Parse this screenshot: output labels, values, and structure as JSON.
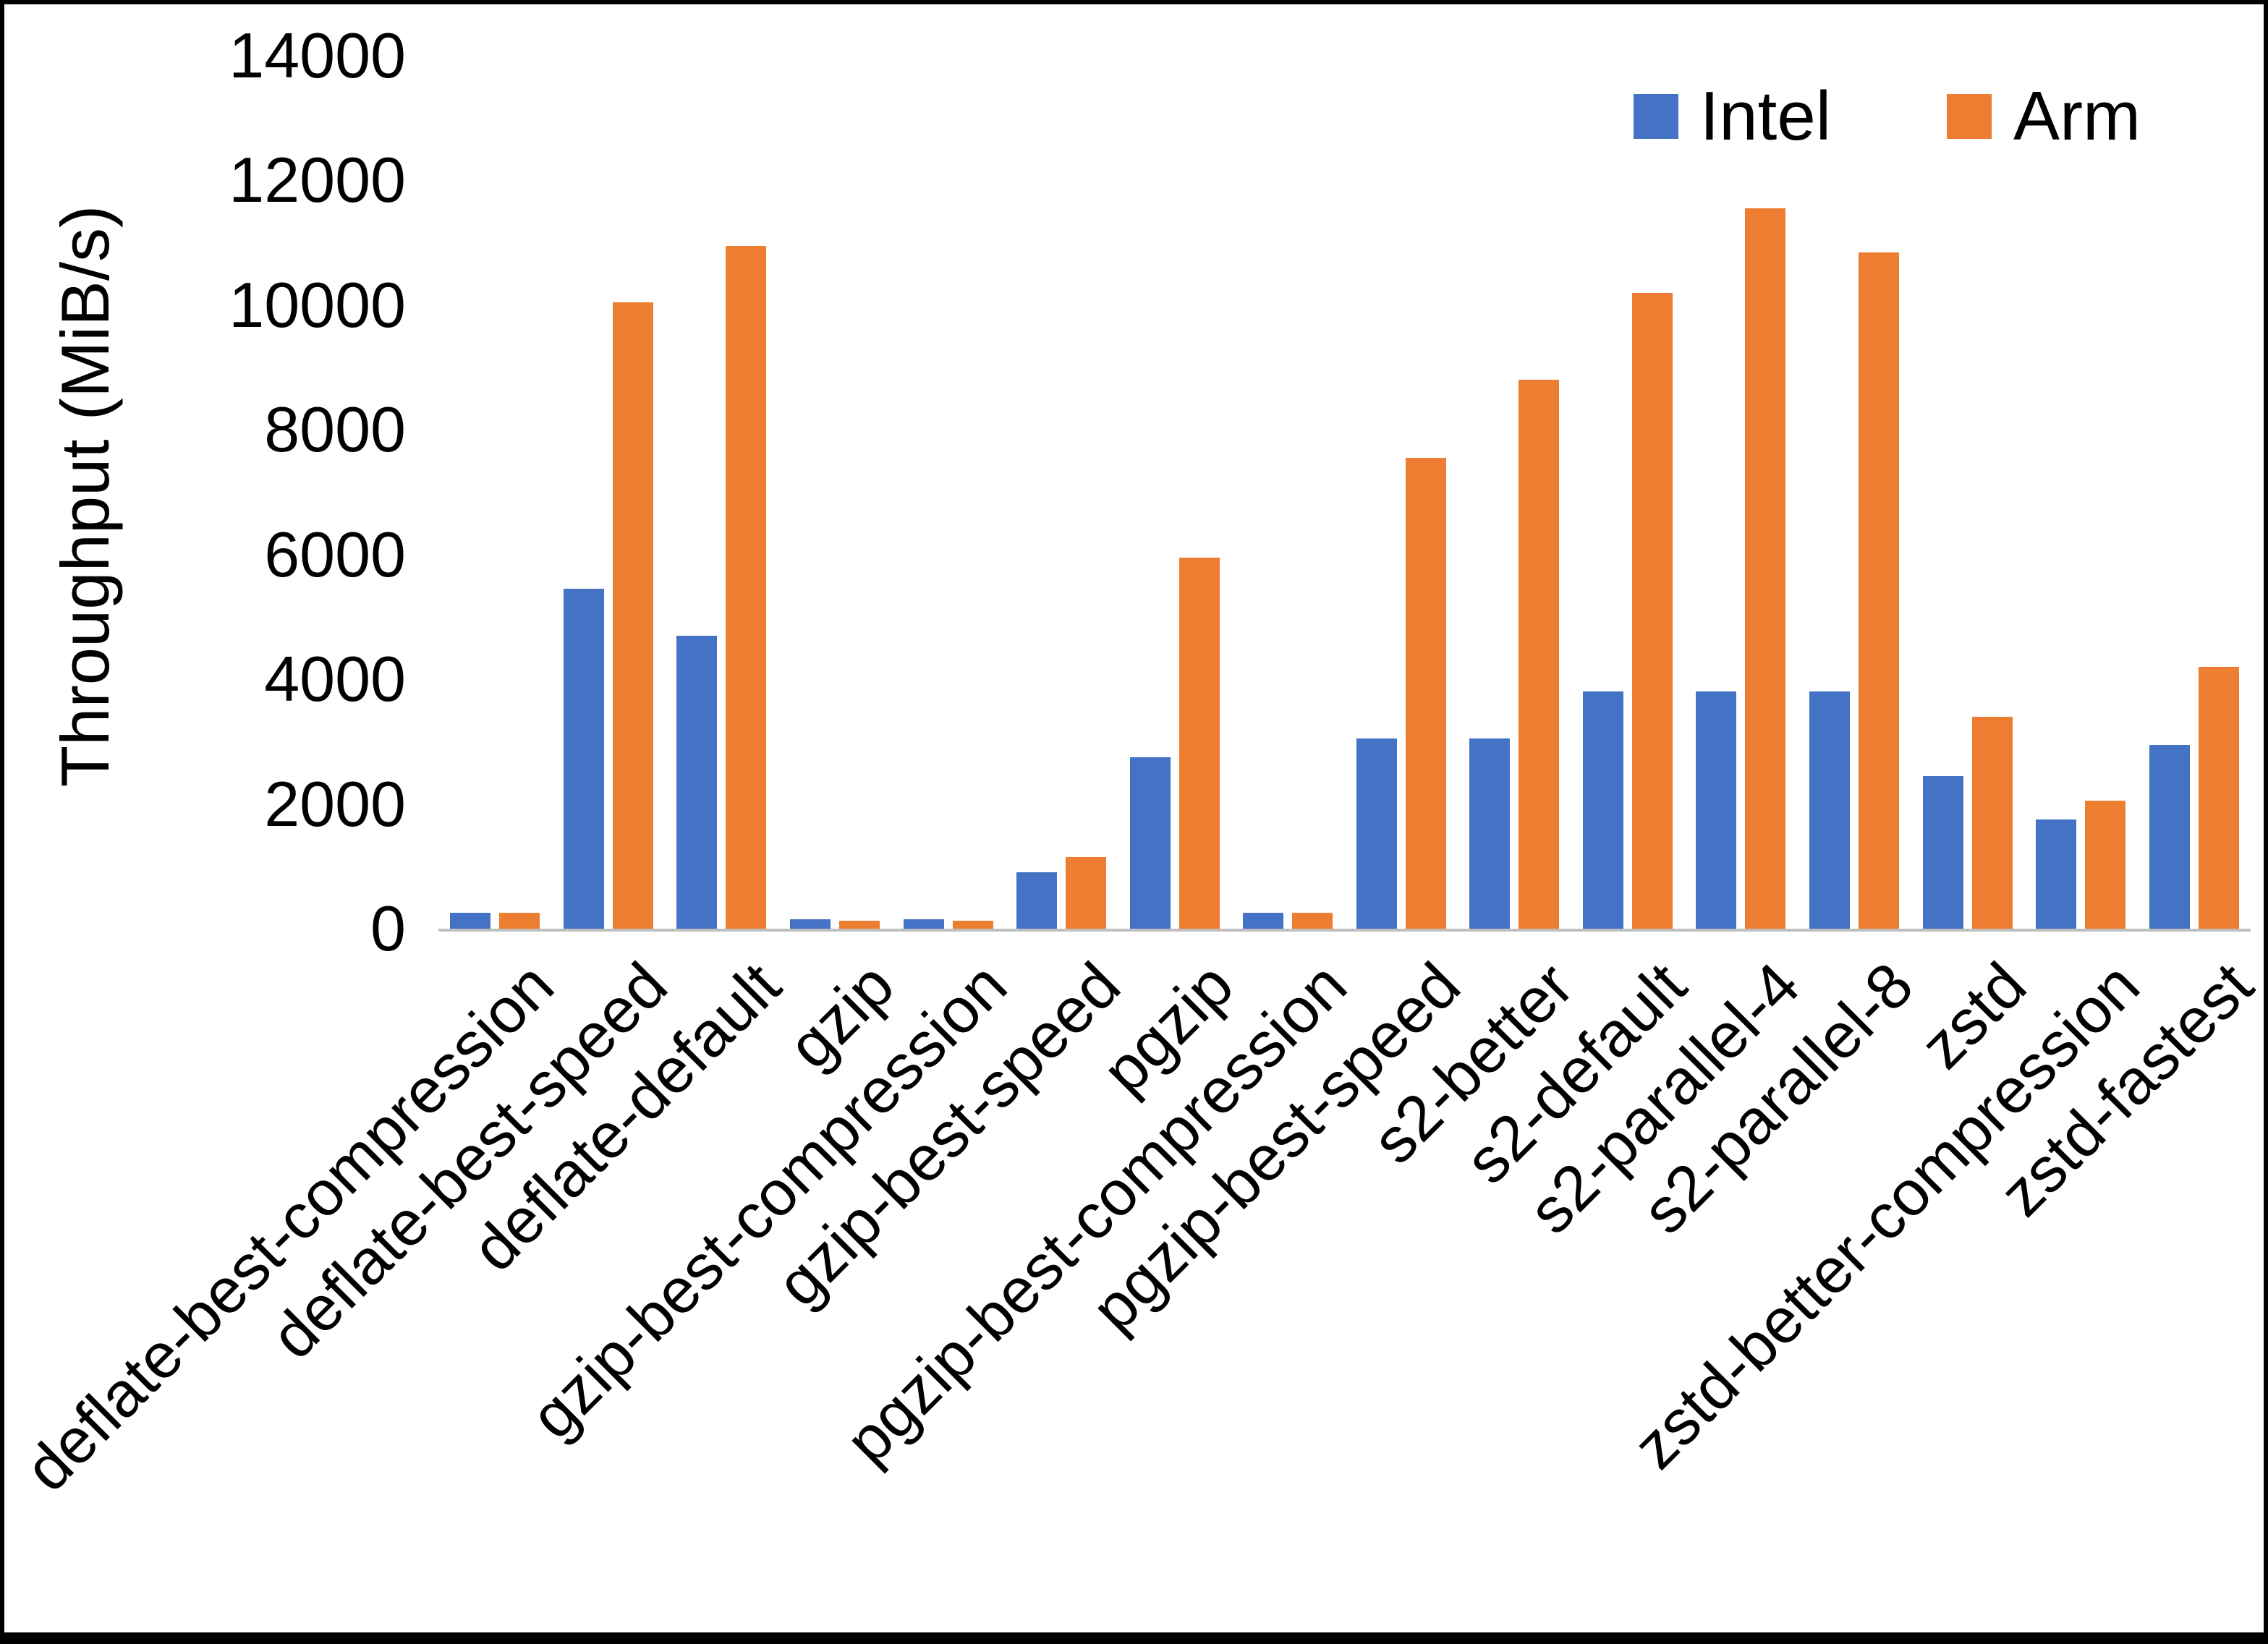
{
  "chart_data": {
    "type": "bar",
    "title": "",
    "xlabel": "",
    "ylabel": "Throughput (MiB/s)",
    "ylim": [
      0,
      14000
    ],
    "ytick_interval": 2000,
    "grid": false,
    "legend_position": "top-right",
    "axis_line_color": "#bfbfbf",
    "categories": [
      "deflate-best-compression",
      "deflate-best-speed",
      "deflate-default",
      "gzip",
      "gzip-best-compression",
      "gzip-best-speed",
      "pgzip",
      "pgzip-best-compression",
      "pgzip-best-speed",
      "s2-better",
      "s2-default",
      "s2-parallel-4",
      "s2-parallel-8",
      "zstd",
      "zstd-better-compression",
      "zstd-fastest"
    ],
    "series": [
      {
        "name": "Intel",
        "color": "#4472C4",
        "values": [
          250,
          5450,
          4700,
          150,
          150,
          900,
          2750,
          250,
          3050,
          3050,
          3800,
          3800,
          3800,
          2450,
          1750,
          2950
        ]
      },
      {
        "name": "Arm",
        "color": "#ED7D31",
        "values": [
          250,
          10050,
          10950,
          130,
          130,
          1150,
          5950,
          250,
          7550,
          8800,
          10200,
          11550,
          10850,
          3400,
          2050,
          4200
        ]
      }
    ]
  }
}
